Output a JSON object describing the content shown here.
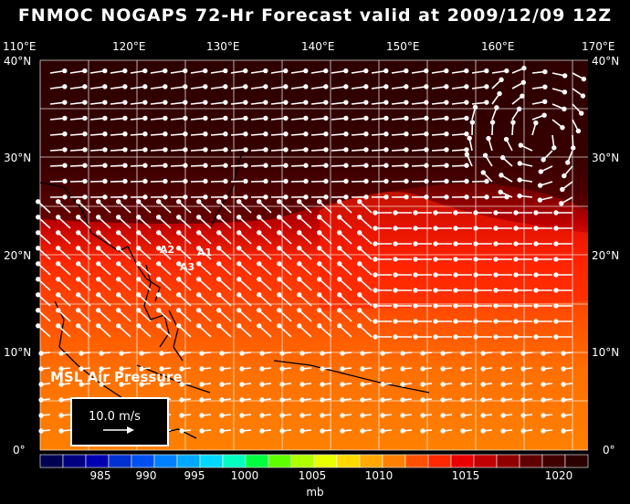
{
  "title": "FNMOC NOGAPS 72-Hr Forecast valid at 2009/12/09 12Z",
  "lon_labels": [
    "110°E",
    "120°E",
    "130°E",
    "140°E",
    "150°E",
    "160°E",
    "170°E"
  ],
  "lat_labels": [
    "40°N",
    "30°N",
    "20°N",
    "10°N",
    "0°"
  ],
  "field_label": "MSL Air Pressure",
  "vector_scale": "10.0 m/s",
  "cyclone_markers": [
    "A1",
    "A2",
    "A3"
  ],
  "colorbar": {
    "unit": "mb",
    "labels": [
      "985",
      "990",
      "995",
      "1000",
      "1005",
      "1010",
      "1015",
      "1020"
    ],
    "colors": [
      "#000050",
      "#000080",
      "#0000b0",
      "#0030d0",
      "#0050f0",
      "#0080ff",
      "#00a8ff",
      "#00d8ff",
      "#00ffc0",
      "#00ff40",
      "#60ff00",
      "#b0ff00",
      "#e8ff00",
      "#ffd800",
      "#ffa800",
      "#ff8000",
      "#ff5000",
      "#ff2800",
      "#e80000",
      "#c00000",
      "#900000",
      "#600000",
      "#400000",
      "#2a0000"
    ]
  }
}
